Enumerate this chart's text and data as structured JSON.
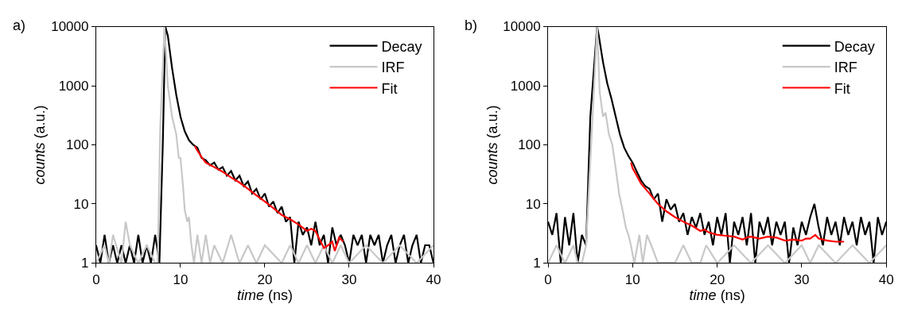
{
  "chart_data": [
    {
      "type": "line",
      "title": "a)",
      "xlabel": "time (ns)",
      "ylabel": "counts (a.u.)",
      "log": "y",
      "xlim": [
        0,
        40
      ],
      "xticks": [
        0,
        10,
        20,
        30,
        40
      ],
      "ylim": [
        1,
        10000
      ],
      "yticks": [
        1,
        10,
        100,
        1000,
        10000
      ],
      "legend": "top right",
      "series": [
        {
          "name": "Decay",
          "color": "#000000",
          "x": [
            0,
            0.5,
            1,
            1.5,
            2,
            2.5,
            3,
            3.5,
            4,
            4.5,
            5,
            5.5,
            6,
            6.5,
            7,
            7.5,
            7.9,
            8.2,
            8.5,
            9,
            9.5,
            10,
            10.5,
            11,
            11.5,
            12,
            12.5,
            13,
            13.5,
            14,
            14.5,
            15,
            15.5,
            16,
            16.5,
            17,
            17.5,
            18,
            18.5,
            19,
            19.5,
            20,
            20.5,
            21,
            21.5,
            22,
            22.5,
            23,
            23.5,
            24,
            24.5,
            25,
            25.5,
            26,
            26.5,
            27,
            27.5,
            28,
            28.5,
            29,
            29.5,
            30,
            30.5,
            31,
            31.5,
            32,
            32.5,
            33,
            33.5,
            34,
            34.5,
            35,
            35.5,
            36,
            36.5,
            37,
            37.5,
            38,
            38.5,
            39,
            39.5,
            40
          ],
          "values": [
            2,
            1,
            3,
            1,
            2,
            1,
            2,
            1,
            2,
            1,
            3,
            1,
            2,
            1,
            3,
            1,
            100,
            10000,
            7000,
            2000,
            700,
            300,
            170,
            120,
            100,
            90,
            60,
            55,
            45,
            50,
            38,
            42,
            30,
            36,
            25,
            30,
            20,
            24,
            15,
            18,
            12,
            15,
            9,
            11,
            7,
            9,
            5,
            6,
            1,
            5,
            3,
            4,
            2,
            5,
            2,
            3,
            1,
            4,
            2,
            3,
            2,
            1,
            3,
            2,
            3,
            1,
            3,
            2,
            3,
            1,
            2,
            3,
            1,
            2,
            3,
            1,
            2,
            3,
            1,
            2,
            2,
            1
          ]
        },
        {
          "name": "IRF",
          "color": "#c8c8c8",
          "x": [
            0,
            1,
            1.5,
            2,
            3,
            3.5,
            4,
            5,
            6,
            7,
            7.3,
            7.6,
            8.1,
            8.5,
            9,
            9.5,
            9.8,
            10,
            10.3,
            10.5,
            10.8,
            11,
            11.3,
            11.6,
            12,
            12.5,
            13,
            13.5,
            14,
            15,
            16,
            17,
            18,
            19,
            20,
            22,
            23,
            24,
            25,
            26,
            27,
            28,
            29,
            30,
            32,
            34,
            36,
            38,
            40
          ],
          "values": [
            1,
            2,
            1,
            3,
            1,
            5,
            2,
            1,
            2,
            1,
            1,
            200,
            10000,
            1000,
            300,
            150,
            60,
            60,
            20,
            8,
            5,
            6,
            2,
            1,
            3,
            1,
            3,
            1,
            2,
            1,
            3,
            1,
            2,
            1,
            2,
            1,
            2,
            1,
            2,
            1,
            2,
            1,
            2,
            1,
            2,
            1,
            2,
            1,
            2
          ]
        },
        {
          "name": "Fit",
          "color": "#ff0000",
          "x": [
            11.7,
            12,
            12.5,
            13,
            14,
            15,
            16,
            17,
            18,
            19,
            20,
            21,
            22,
            23,
            24,
            25,
            25.5,
            26,
            26.5,
            27,
            27.5,
            28,
            28.3,
            28.8,
            29.3
          ],
          "values": [
            95,
            80,
            62,
            50,
            42,
            35,
            28,
            23,
            18,
            14,
            11,
            8.5,
            6.5,
            5.5,
            4.5,
            3.5,
            3.8,
            3.5,
            2.5,
            1.8,
            2,
            2.3,
            1.6,
            2.7,
            2.3
          ]
        }
      ]
    },
    {
      "type": "line",
      "title": "b)",
      "xlabel": "time (ns)",
      "ylabel": "counts (a.u.)",
      "log": "y",
      "xlim": [
        0,
        40
      ],
      "xticks": [
        0,
        10,
        20,
        30,
        40
      ],
      "ylim": [
        1,
        10000
      ],
      "yticks": [
        1,
        10,
        100,
        1000,
        10000
      ],
      "legend": "top right",
      "series": [
        {
          "name": "Decay",
          "color": "#000000",
          "x": [
            0,
            0.5,
            1,
            1.5,
            2,
            2.5,
            3,
            3.5,
            4,
            4.5,
            5,
            5.8,
            6,
            6.5,
            7,
            7.5,
            8,
            8.5,
            9,
            9.5,
            10,
            10.5,
            11,
            11.5,
            12,
            12.5,
            13,
            13.5,
            14,
            14.5,
            15,
            15.5,
            16,
            16.5,
            17,
            17.5,
            18,
            18.5,
            19,
            19.5,
            20,
            20.5,
            21,
            21.5,
            22,
            22.5,
            23,
            23.5,
            24,
            24.5,
            25,
            25.5,
            26,
            26.5,
            27,
            27.5,
            28,
            28.5,
            29,
            29.5,
            30,
            30.5,
            31,
            31.5,
            32,
            32.5,
            33,
            33.5,
            34,
            34.5,
            35,
            35.5,
            36,
            36.5,
            37,
            37.5,
            38,
            38.5,
            39,
            39.5,
            40
          ],
          "values": [
            5,
            3,
            7,
            1,
            6,
            2,
            7,
            1,
            3,
            2,
            300,
            10000,
            7000,
            2500,
            1100,
            600,
            300,
            150,
            90,
            65,
            50,
            35,
            25,
            20,
            18,
            12,
            15,
            5,
            12,
            8,
            10,
            5,
            7,
            3,
            6,
            4,
            7,
            3,
            5,
            2,
            6,
            3,
            7,
            1,
            5,
            3,
            6,
            2,
            7,
            1,
            5,
            3,
            6,
            2,
            5,
            3,
            5,
            1,
            4,
            2,
            5,
            3,
            6,
            10,
            4,
            2,
            6,
            3,
            5,
            2,
            6,
            3,
            5,
            2,
            6,
            3,
            5,
            1,
            6,
            3,
            5
          ]
        },
        {
          "name": "IRF",
          "color": "#c8c8c8",
          "x": [
            0,
            1,
            2,
            3,
            3.5,
            4,
            4.5,
            5.8,
            6.1,
            6.5,
            6.8,
            7.2,
            7.6,
            8,
            8.4,
            8.8,
            9.2,
            9.5,
            9.8,
            10.2,
            10.8,
            11.2,
            11.7,
            12.2,
            13,
            14,
            15,
            16,
            17,
            18,
            18.7,
            20,
            22,
            24,
            26,
            28,
            30,
            31,
            32,
            34,
            36,
            38,
            40
          ],
          "values": [
            1,
            2,
            1,
            2,
            1,
            1,
            2,
            10000,
            800,
            300,
            350,
            150,
            100,
            40,
            15,
            8,
            4,
            3,
            2,
            1,
            3,
            1,
            3,
            2,
            1,
            1,
            1,
            2,
            1,
            1,
            2,
            1,
            2,
            1,
            2,
            1,
            2,
            1,
            2,
            1,
            2,
            1,
            2
          ]
        },
        {
          "name": "Fit",
          "color": "#ff0000",
          "x": [
            9.8,
            10,
            10.5,
            11,
            12,
            13,
            14,
            15,
            16,
            17,
            18,
            18.5,
            19,
            20,
            21,
            22,
            23,
            23.5,
            24,
            25,
            26,
            27,
            28,
            29,
            30,
            30.5,
            31,
            31.6,
            32,
            33,
            34,
            35
          ],
          "values": [
            50,
            40,
            30,
            22,
            15,
            10,
            7.5,
            6,
            5,
            4.3,
            3.5,
            3.7,
            3.3,
            3,
            2.9,
            2.8,
            2.5,
            2.7,
            2.8,
            2.6,
            2.8,
            2.7,
            2.4,
            2.5,
            2.4,
            2.6,
            2.6,
            3,
            2.6,
            2.4,
            2.3,
            2.3
          ]
        }
      ]
    }
  ]
}
